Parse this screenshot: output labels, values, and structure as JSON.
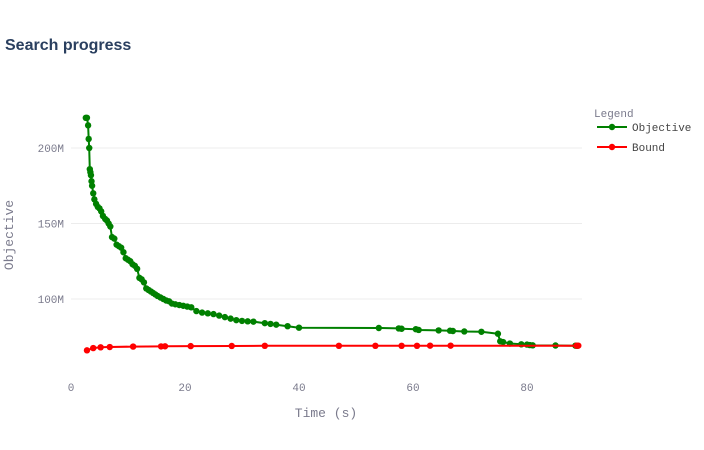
{
  "chart_data": {
    "type": "line",
    "title": "Search progress",
    "xlabel": "Time (s)",
    "ylabel": "Objective",
    "xlim": [
      0,
      89
    ],
    "ylim": [
      60000000,
      228000000
    ],
    "x_ticks": [
      0,
      20,
      40,
      60,
      80
    ],
    "x_tick_labels": [
      "0",
      "20",
      "40",
      "60",
      "80"
    ],
    "y_ticks": [
      100000000,
      150000000,
      200000000
    ],
    "y_tick_labels": [
      "100M",
      "150M",
      "200M"
    ],
    "grid": "horizontal",
    "legend": {
      "title": "Legend",
      "placement": "right"
    },
    "series": [
      {
        "name": "Objective",
        "color": "#008000",
        "x": [
          2.6,
          2.8,
          3.0,
          3.1,
          3.2,
          3.3,
          3.4,
          3.5,
          3.6,
          3.7,
          3.9,
          4.1,
          4.4,
          4.7,
          5.0,
          5.3,
          5.6,
          6.0,
          6.3,
          6.6,
          6.9,
          7.2,
          7.6,
          8.0,
          8.4,
          8.8,
          9.2,
          9.6,
          10.0,
          10.4,
          10.8,
          11.2,
          11.6,
          12.0,
          12.4,
          12.8,
          13.2,
          13.6,
          14.0,
          14.4,
          14.8,
          15.2,
          15.7,
          16.2,
          16.7,
          17.2,
          17.7,
          18.3,
          19.0,
          19.7,
          20.4,
          21.1,
          22.0,
          23.0,
          24.0,
          25.0,
          26.0,
          27.0,
          28.0,
          29.0,
          30.0,
          31.0,
          32.0,
          34.0,
          35.0,
          36.0,
          38.0,
          40.0,
          54.0,
          57.5,
          58.0,
          60.5,
          61.0,
          64.5,
          66.5,
          67.0,
          69.0,
          72.0,
          74.9,
          75.3,
          75.8,
          77.0,
          79.0,
          80.0,
          80.5,
          81.0,
          85.0,
          88.5,
          88.8
        ],
        "values": [
          220000000,
          220000000,
          215000000,
          206000000,
          200000000,
          186000000,
          184000000,
          182000000,
          178000000,
          175000000,
          170000000,
          166000000,
          163000000,
          161000000,
          160000000,
          158000000,
          155000000,
          153000000,
          152000000,
          150000000,
          148000000,
          141000000,
          140000000,
          136000000,
          135000000,
          134000000,
          131000000,
          127000000,
          126000000,
          125000000,
          123000000,
          122000000,
          120000000,
          114000000,
          113000000,
          111000000,
          107000000,
          106000000,
          105000000,
          104000000,
          103000000,
          102000000,
          101000000,
          100000000,
          99000000,
          98500000,
          97000000,
          96500000,
          96000000,
          95500000,
          95000000,
          94500000,
          92000000,
          91000000,
          90500000,
          90000000,
          89000000,
          88000000,
          87000000,
          86000000,
          85500000,
          85200000,
          85000000,
          84000000,
          83500000,
          83000000,
          82000000,
          81000000,
          80800000,
          80500000,
          80300000,
          80000000,
          79500000,
          79200000,
          79000000,
          78800000,
          78500000,
          78300000,
          77000000,
          72000000,
          71500000,
          70500000,
          70000000,
          69800000,
          69500000,
          69300000,
          69200000,
          69100000,
          69000000
        ]
      },
      {
        "name": "Bound",
        "color": "#ff0000",
        "x": [
          2.8,
          3.9,
          5.2,
          6.8,
          10.9,
          15.8,
          16.5,
          21.0,
          28.2,
          34.0,
          47.0,
          53.4,
          58.0,
          60.7,
          63.0,
          66.6,
          88.7,
          89.0
        ],
        "values": [
          66000000,
          67500000,
          68000000,
          68200000,
          68500000,
          68600000,
          68700000,
          68800000,
          68900000,
          69000000,
          69000000,
          69000000,
          69000000,
          69000000,
          69100000,
          69100000,
          69100000,
          69100000
        ]
      }
    ]
  }
}
